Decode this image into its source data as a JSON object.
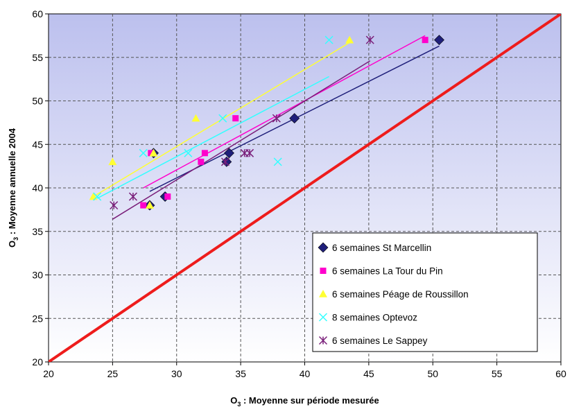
{
  "chart_data": {
    "type": "scatter",
    "xlabel": {
      "prefix": "O",
      "sub": "3",
      "rest": " : Moyenne sur période mesurée"
    },
    "ylabel": {
      "prefix": "O",
      "sub": "3",
      "rest": " : Moyenne annuelle 2004"
    },
    "xlim": [
      20,
      60
    ],
    "ylim": [
      20,
      60
    ],
    "xticks": [
      20,
      25,
      30,
      35,
      40,
      45,
      50,
      55,
      60
    ],
    "yticks": [
      20,
      25,
      30,
      35,
      40,
      45,
      50,
      55,
      60
    ],
    "grid": true,
    "legend_position": "bottom-right",
    "identity_line": {
      "from": [
        20,
        20
      ],
      "to": [
        60,
        60
      ],
      "color": "#ee1c1c"
    },
    "series": [
      {
        "name": "6 semaines St Marcellin",
        "marker": "diamond",
        "color": "#1f1f7a",
        "points": [
          [
            27.9,
            38
          ],
          [
            29.1,
            39
          ],
          [
            28.2,
            44
          ],
          [
            33.9,
            43
          ],
          [
            34.1,
            44
          ],
          [
            39.2,
            48
          ],
          [
            50.5,
            57
          ]
        ],
        "trend": [
          [
            27.9,
            39.6
          ],
          [
            50.5,
            56.3
          ]
        ]
      },
      {
        "name": "6 semaines La Tour du Pin",
        "marker": "square",
        "color": "#ff00cc",
        "points": [
          [
            27.4,
            38
          ],
          [
            29.3,
            39
          ],
          [
            28.0,
            44
          ],
          [
            31.9,
            43
          ],
          [
            32.2,
            44
          ],
          [
            34.6,
            48
          ],
          [
            49.4,
            57
          ]
        ],
        "trend": [
          [
            27.4,
            40.0
          ],
          [
            49.4,
            57.5
          ]
        ]
      },
      {
        "name": "6 semaines Péage de Roussillon",
        "marker": "triangle",
        "color": "#ffff33",
        "points": [
          [
            23.5,
            39
          ],
          [
            25.0,
            43
          ],
          [
            27.9,
            38
          ],
          [
            28.2,
            44
          ],
          [
            31.5,
            48
          ],
          [
            43.5,
            57
          ]
        ],
        "trend": [
          [
            23.5,
            39.0
          ],
          [
            43.5,
            56.7
          ]
        ]
      },
      {
        "name": "8 semaines Optevoz",
        "marker": "x",
        "color": "#33ffff",
        "points": [
          [
            23.8,
            39
          ],
          [
            27.4,
            44
          ],
          [
            30.9,
            44
          ],
          [
            33.6,
            48
          ],
          [
            37.9,
            43
          ],
          [
            41.9,
            57
          ]
        ],
        "trend": [
          [
            23.8,
            38.8
          ],
          [
            41.9,
            52.8
          ]
        ]
      },
      {
        "name": "6 semaines Le Sappey",
        "marker": "asterisk",
        "color": "#7a1f7a",
        "points": [
          [
            25.1,
            38
          ],
          [
            26.6,
            39
          ],
          [
            33.8,
            43
          ],
          [
            35.3,
            44
          ],
          [
            35.7,
            44
          ],
          [
            37.8,
            48
          ],
          [
            45.1,
            57
          ]
        ],
        "trend": [
          [
            25.0,
            36.4
          ],
          [
            45.1,
            54.6
          ]
        ]
      }
    ]
  },
  "colors": {
    "plot_top": "#bcc0ee",
    "plot_bottom": "#ffffff",
    "grid": "#555555"
  }
}
